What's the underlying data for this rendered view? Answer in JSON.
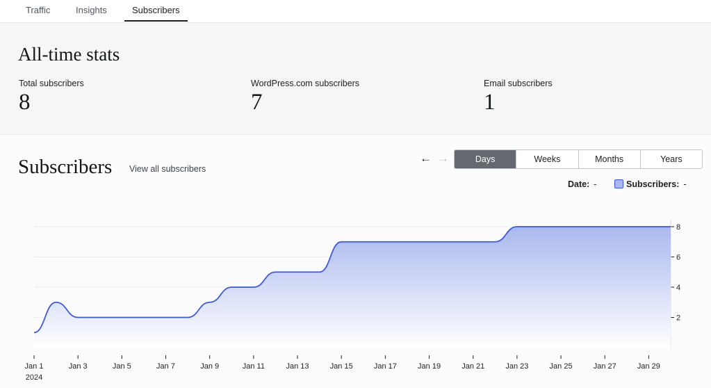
{
  "tabs": [
    {
      "label": "Traffic",
      "active": false
    },
    {
      "label": "Insights",
      "active": false
    },
    {
      "label": "Subscribers",
      "active": true
    }
  ],
  "alltime": {
    "title": "All-time stats",
    "stats": [
      {
        "label": "Total subscribers",
        "value": "8"
      },
      {
        "label": "WordPress.com subscribers",
        "value": "7"
      },
      {
        "label": "Email subscribers",
        "value": "1"
      }
    ]
  },
  "subscribers": {
    "title": "Subscribers",
    "view_all": "View all subscribers",
    "nav": {
      "prev": "←",
      "next": "→"
    },
    "periods": [
      {
        "label": "Days",
        "active": true
      },
      {
        "label": "Weeks",
        "active": false
      },
      {
        "label": "Months",
        "active": false
      },
      {
        "label": "Years",
        "active": false
      }
    ],
    "legend": {
      "date_label": "Date:",
      "date_value": "-",
      "series_label": "Subscribers:",
      "series_value": "-"
    }
  },
  "colors": {
    "line": "#3858e9",
    "fill_top": "#aab8ee",
    "fill_bottom": "#ffffff",
    "active_segment": "#646970"
  },
  "chart_data": {
    "type": "area",
    "x": [
      "Jan 1",
      "Jan 2",
      "Jan 3",
      "Jan 4",
      "Jan 5",
      "Jan 6",
      "Jan 7",
      "Jan 8",
      "Jan 9",
      "Jan 10",
      "Jan 11",
      "Jan 12",
      "Jan 13",
      "Jan 14",
      "Jan 15",
      "Jan 16",
      "Jan 17",
      "Jan 18",
      "Jan 19",
      "Jan 20",
      "Jan 21",
      "Jan 22",
      "Jan 23",
      "Jan 24",
      "Jan 25",
      "Jan 26",
      "Jan 27",
      "Jan 28",
      "Jan 29",
      "Jan 30"
    ],
    "series": [
      {
        "values": [
          1,
          3,
          2,
          2,
          2,
          2,
          2,
          2,
          3,
          4,
          4,
          5,
          5,
          5,
          7,
          7,
          7,
          7,
          7,
          7,
          7,
          7,
          8,
          8,
          8,
          8,
          8,
          8,
          8,
          8
        ]
      }
    ],
    "x_tick_labels": [
      "Jan 1",
      "Jan 3",
      "Jan 5",
      "Jan 7",
      "Jan 9",
      "Jan 11",
      "Jan 13",
      "Jan 15",
      "Jan 17",
      "Jan 19",
      "Jan 21",
      "Jan 23",
      "Jan 25",
      "Jan 27",
      "Jan 29"
    ],
    "x_tick_sublabel": "2024",
    "y_ticks": [
      2,
      4,
      6,
      8
    ],
    "ylim": [
      0,
      8
    ],
    "grid": true,
    "y_axis_side": "right"
  }
}
